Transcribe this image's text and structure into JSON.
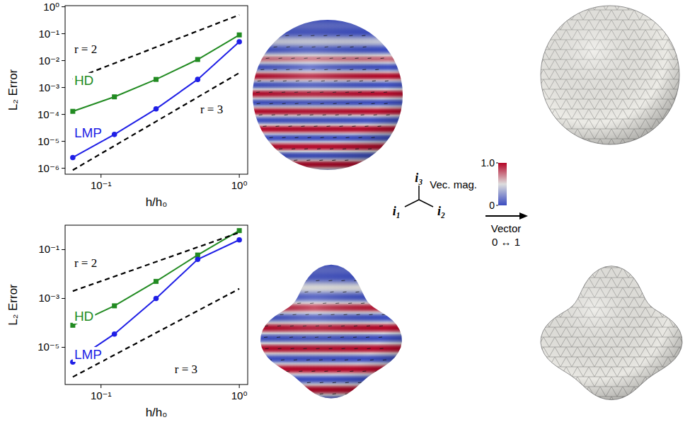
{
  "chart_data": [
    {
      "type": "line",
      "log": true,
      "x": [
        1,
        0.5,
        0.25,
        0.125,
        0.0625
      ],
      "xlabel": "h/h₀",
      "ylabel": "L₂ Error",
      "xlim": [
        0.055,
        1.15
      ],
      "ylim": [
        6e-07,
        1.1
      ],
      "xticks": [
        {
          "value": 0.1,
          "label": "10⁻¹"
        },
        {
          "value": 1,
          "label": "10⁰"
        }
      ],
      "yticks": [
        {
          "value": 1e-06,
          "label": "10⁻⁶"
        },
        {
          "value": 1e-05,
          "label": "10⁻⁵"
        },
        {
          "value": 0.0001,
          "label": "10⁻⁴"
        },
        {
          "value": 0.001,
          "label": "10⁻³"
        },
        {
          "value": 0.01,
          "label": "10⁻²"
        },
        {
          "value": 0.1,
          "label": "10⁻¹"
        },
        {
          "value": 1,
          "label": "10⁰"
        }
      ],
      "series": [
        {
          "name": "HD",
          "color": "#228b22",
          "marker": "square",
          "line_style": "solid",
          "values": [
            0.09,
            0.011,
            0.002,
            0.00045,
            0.00013
          ]
        },
        {
          "name": "LMP",
          "color": "#1f1fe6",
          "marker": "circle",
          "line_style": "solid",
          "values": [
            0.05,
            0.002,
            0.00016,
            1.8e-05,
            2.5e-06
          ]
        },
        {
          "name": "r = 2",
          "color": "#000000",
          "marker": "none",
          "line_style": "dashed",
          "x": [
            0.0625,
            1
          ],
          "values": [
            0.002,
            0.5
          ]
        },
        {
          "name": "r = 3",
          "color": "#000000",
          "marker": "none",
          "line_style": "dashed",
          "x": [
            0.0625,
            1
          ],
          "values": [
            8.5e-07,
            0.0035
          ]
        }
      ]
    },
    {
      "type": "line",
      "log": true,
      "x": [
        1,
        0.5,
        0.25,
        0.125,
        0.0625
      ],
      "xlabel": "h/h₀",
      "ylabel": "L₂ Error",
      "xlim": [
        0.055,
        1.15
      ],
      "ylim": [
        3e-07,
        1
      ],
      "xticks": [
        {
          "value": 0.1,
          "label": "10⁻¹"
        },
        {
          "value": 1,
          "label": "10⁰"
        }
      ],
      "yticks": [
        {
          "value": 1e-05,
          "label": "10⁻⁵"
        },
        {
          "value": 0.001,
          "label": "10⁻³"
        },
        {
          "value": 0.1,
          "label": "10⁻¹"
        }
      ],
      "series": [
        {
          "name": "HD",
          "color": "#228b22",
          "marker": "square",
          "line_style": "solid",
          "values": [
            0.6,
            0.06,
            0.005,
            0.0005,
            8e-05
          ]
        },
        {
          "name": "LMP",
          "color": "#1f1fe6",
          "marker": "circle",
          "line_style": "solid",
          "values": [
            0.25,
            0.04,
            0.001,
            3.5e-05,
            2.5e-06
          ]
        },
        {
          "name": "r = 2",
          "color": "#000000",
          "marker": "none",
          "line_style": "dashed",
          "x": [
            0.0625,
            1
          ],
          "values": [
            0.002,
            0.5
          ]
        },
        {
          "name": "r = 3",
          "color": "#000000",
          "marker": "none",
          "line_style": "dashed",
          "x": [
            0.0625,
            1
          ],
          "values": [
            6.1e-07,
            0.0025
          ]
        }
      ]
    }
  ],
  "figure": {
    "colorbar": {
      "label": "Vec. mag.",
      "range": [
        0,
        1
      ],
      "ticks": [
        {
          "value": 0,
          "label": "0"
        },
        {
          "value": 1,
          "label": "1.0"
        }
      ]
    },
    "axes": [
      "i₁",
      "i₂",
      "i₃"
    ],
    "arrow": {
      "label": "Vector",
      "caption": "0 ↔ 1"
    }
  }
}
